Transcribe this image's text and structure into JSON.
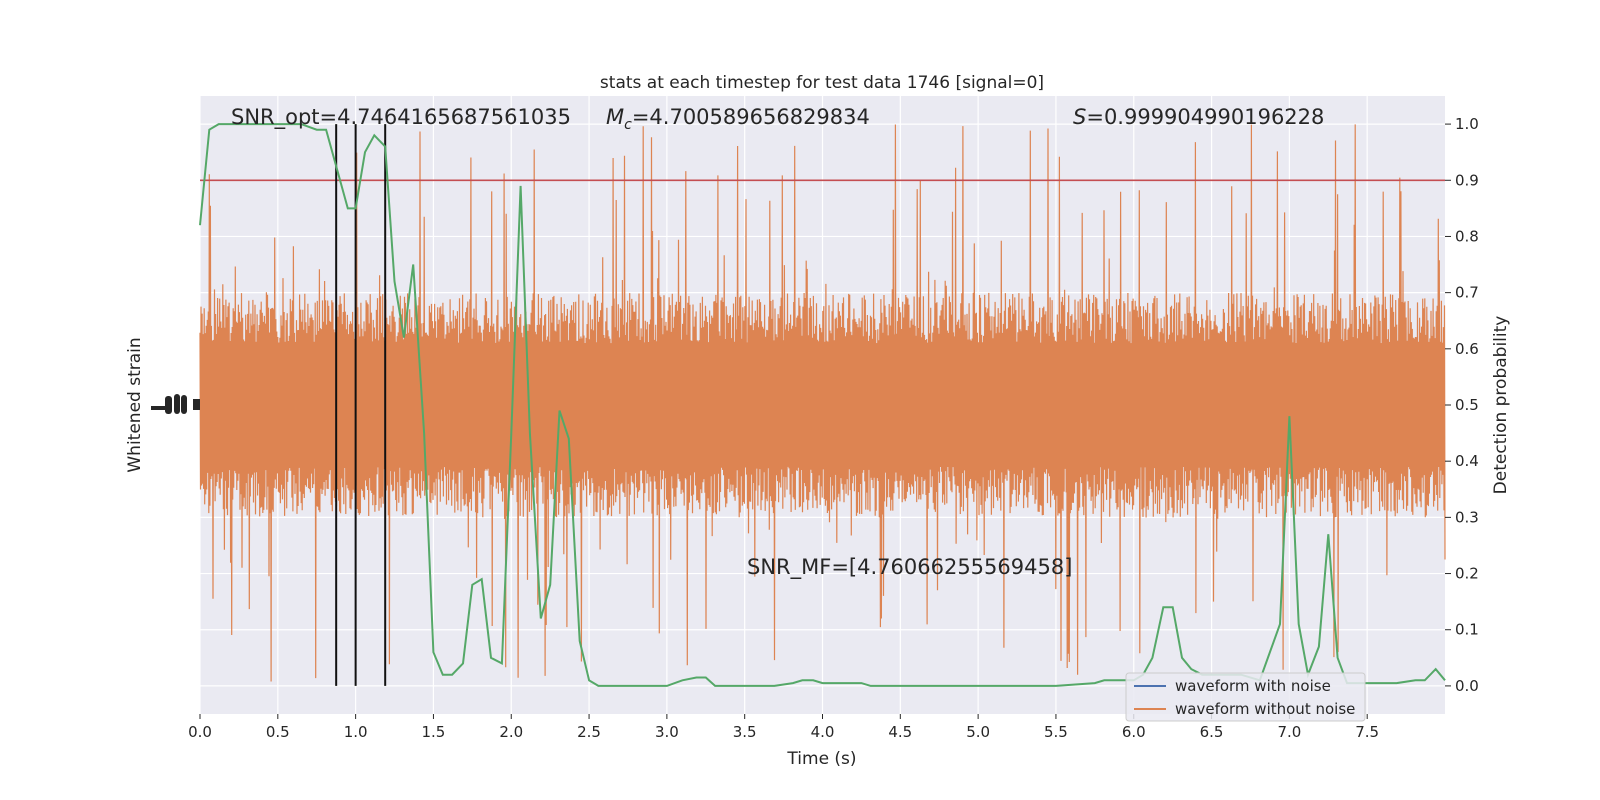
{
  "chart_data": {
    "type": "line",
    "title": "stats at each timestep for test data 1746 [signal=0]",
    "xlabel": "Time (s)",
    "ylabel_left": "Whitened strain",
    "ylabel_right": "Detection probability",
    "xlim": [
      0,
      8
    ],
    "ylim_right": [
      -0.05,
      1.05
    ],
    "x_ticks": [
      0.0,
      0.5,
      1.0,
      1.5,
      2.0,
      2.5,
      3.0,
      3.5,
      4.0,
      4.5,
      5.0,
      5.5,
      6.0,
      6.5,
      7.0,
      7.5
    ],
    "x_tick_labels": [
      "0.0",
      "0.5",
      "1.0",
      "1.5",
      "2.0",
      "2.5",
      "3.0",
      "3.5",
      "4.0",
      "4.5",
      "5.0",
      "5.5",
      "6.0",
      "6.5",
      "7.0",
      "7.5"
    ],
    "y_right_ticks": [
      0.0,
      0.1,
      0.2,
      0.3,
      0.4,
      0.5,
      0.6,
      0.7,
      0.8,
      0.9,
      1.0
    ],
    "y_right_tick_labels": [
      "0.0",
      "0.1",
      "0.2",
      "0.3",
      "0.4",
      "0.5",
      "0.6",
      "0.7",
      "0.8",
      "0.9",
      "1.0"
    ],
    "grid": true,
    "legend_position": "lower-right",
    "annotations": {
      "snr_opt": "SNR_opt=4.7464165687561035",
      "mc_symbol": "M",
      "mc_sub": "c",
      "mc_value": "=4.700589656829834",
      "s_symbol": "S",
      "s_value": "=0.999904990196228",
      "snr_mf": "SNR_MF=[4.76066255569458]"
    },
    "threshold": {
      "value": 0.9,
      "color": "#c44e52"
    },
    "vertical_lines_x": [
      0.875,
      1.0,
      1.19
    ],
    "series": [
      {
        "name": "waveform with noise",
        "color": "#4c72b0"
      },
      {
        "name": "waveform without noise",
        "color": "#dd8452",
        "center": 0.5,
        "typical_half_range": 0.2,
        "peak_half_range": 0.5
      },
      {
        "color": "#55a868",
        "x": [
          0.0,
          0.06,
          0.12,
          0.25,
          0.5,
          0.65,
          0.75,
          0.81,
          0.87,
          0.95,
          1.0,
          1.06,
          1.12,
          1.19,
          1.25,
          1.31,
          1.37,
          1.44,
          1.5,
          1.56,
          1.62,
          1.69,
          1.75,
          1.81,
          1.87,
          1.94,
          2.0,
          2.06,
          2.12,
          2.19,
          2.25,
          2.31,
          2.37,
          2.44,
          2.5,
          2.56,
          2.62,
          2.75,
          2.9,
          3.0,
          3.1,
          3.19,
          3.25,
          3.31,
          3.37,
          3.5,
          3.69,
          3.81,
          3.87,
          3.94,
          4.0,
          4.12,
          4.25,
          4.31,
          4.37,
          4.5,
          5.0,
          5.5,
          5.75,
          5.81,
          6.0,
          6.06,
          6.12,
          6.19,
          6.25,
          6.31,
          6.37,
          6.44,
          6.5,
          6.62,
          6.69,
          6.81,
          6.94,
          7.0,
          7.06,
          7.12,
          7.19,
          7.25,
          7.31,
          7.37,
          7.5,
          7.69,
          7.81,
          7.87,
          7.94,
          8.0
        ],
        "y": [
          0.82,
          0.99,
          1.0,
          1.0,
          1.0,
          1.0,
          0.99,
          0.99,
          0.93,
          0.85,
          0.85,
          0.95,
          0.98,
          0.96,
          0.72,
          0.62,
          0.75,
          0.45,
          0.06,
          0.02,
          0.02,
          0.04,
          0.18,
          0.19,
          0.05,
          0.04,
          0.45,
          0.89,
          0.45,
          0.12,
          0.18,
          0.49,
          0.44,
          0.08,
          0.01,
          0.0,
          0.0,
          0.0,
          0.0,
          0.0,
          0.01,
          0.015,
          0.015,
          0.0,
          0.0,
          0.0,
          0.0,
          0.005,
          0.01,
          0.01,
          0.005,
          0.005,
          0.005,
          0.0,
          0.0,
          0.0,
          0.0,
          0.0,
          0.005,
          0.01,
          0.01,
          0.02,
          0.05,
          0.14,
          0.14,
          0.05,
          0.03,
          0.02,
          0.02,
          0.02,
          0.02,
          0.01,
          0.11,
          0.48,
          0.11,
          0.02,
          0.07,
          0.27,
          0.05,
          0.005,
          0.005,
          0.005,
          0.01,
          0.01,
          0.03,
          0.01
        ]
      }
    ]
  }
}
